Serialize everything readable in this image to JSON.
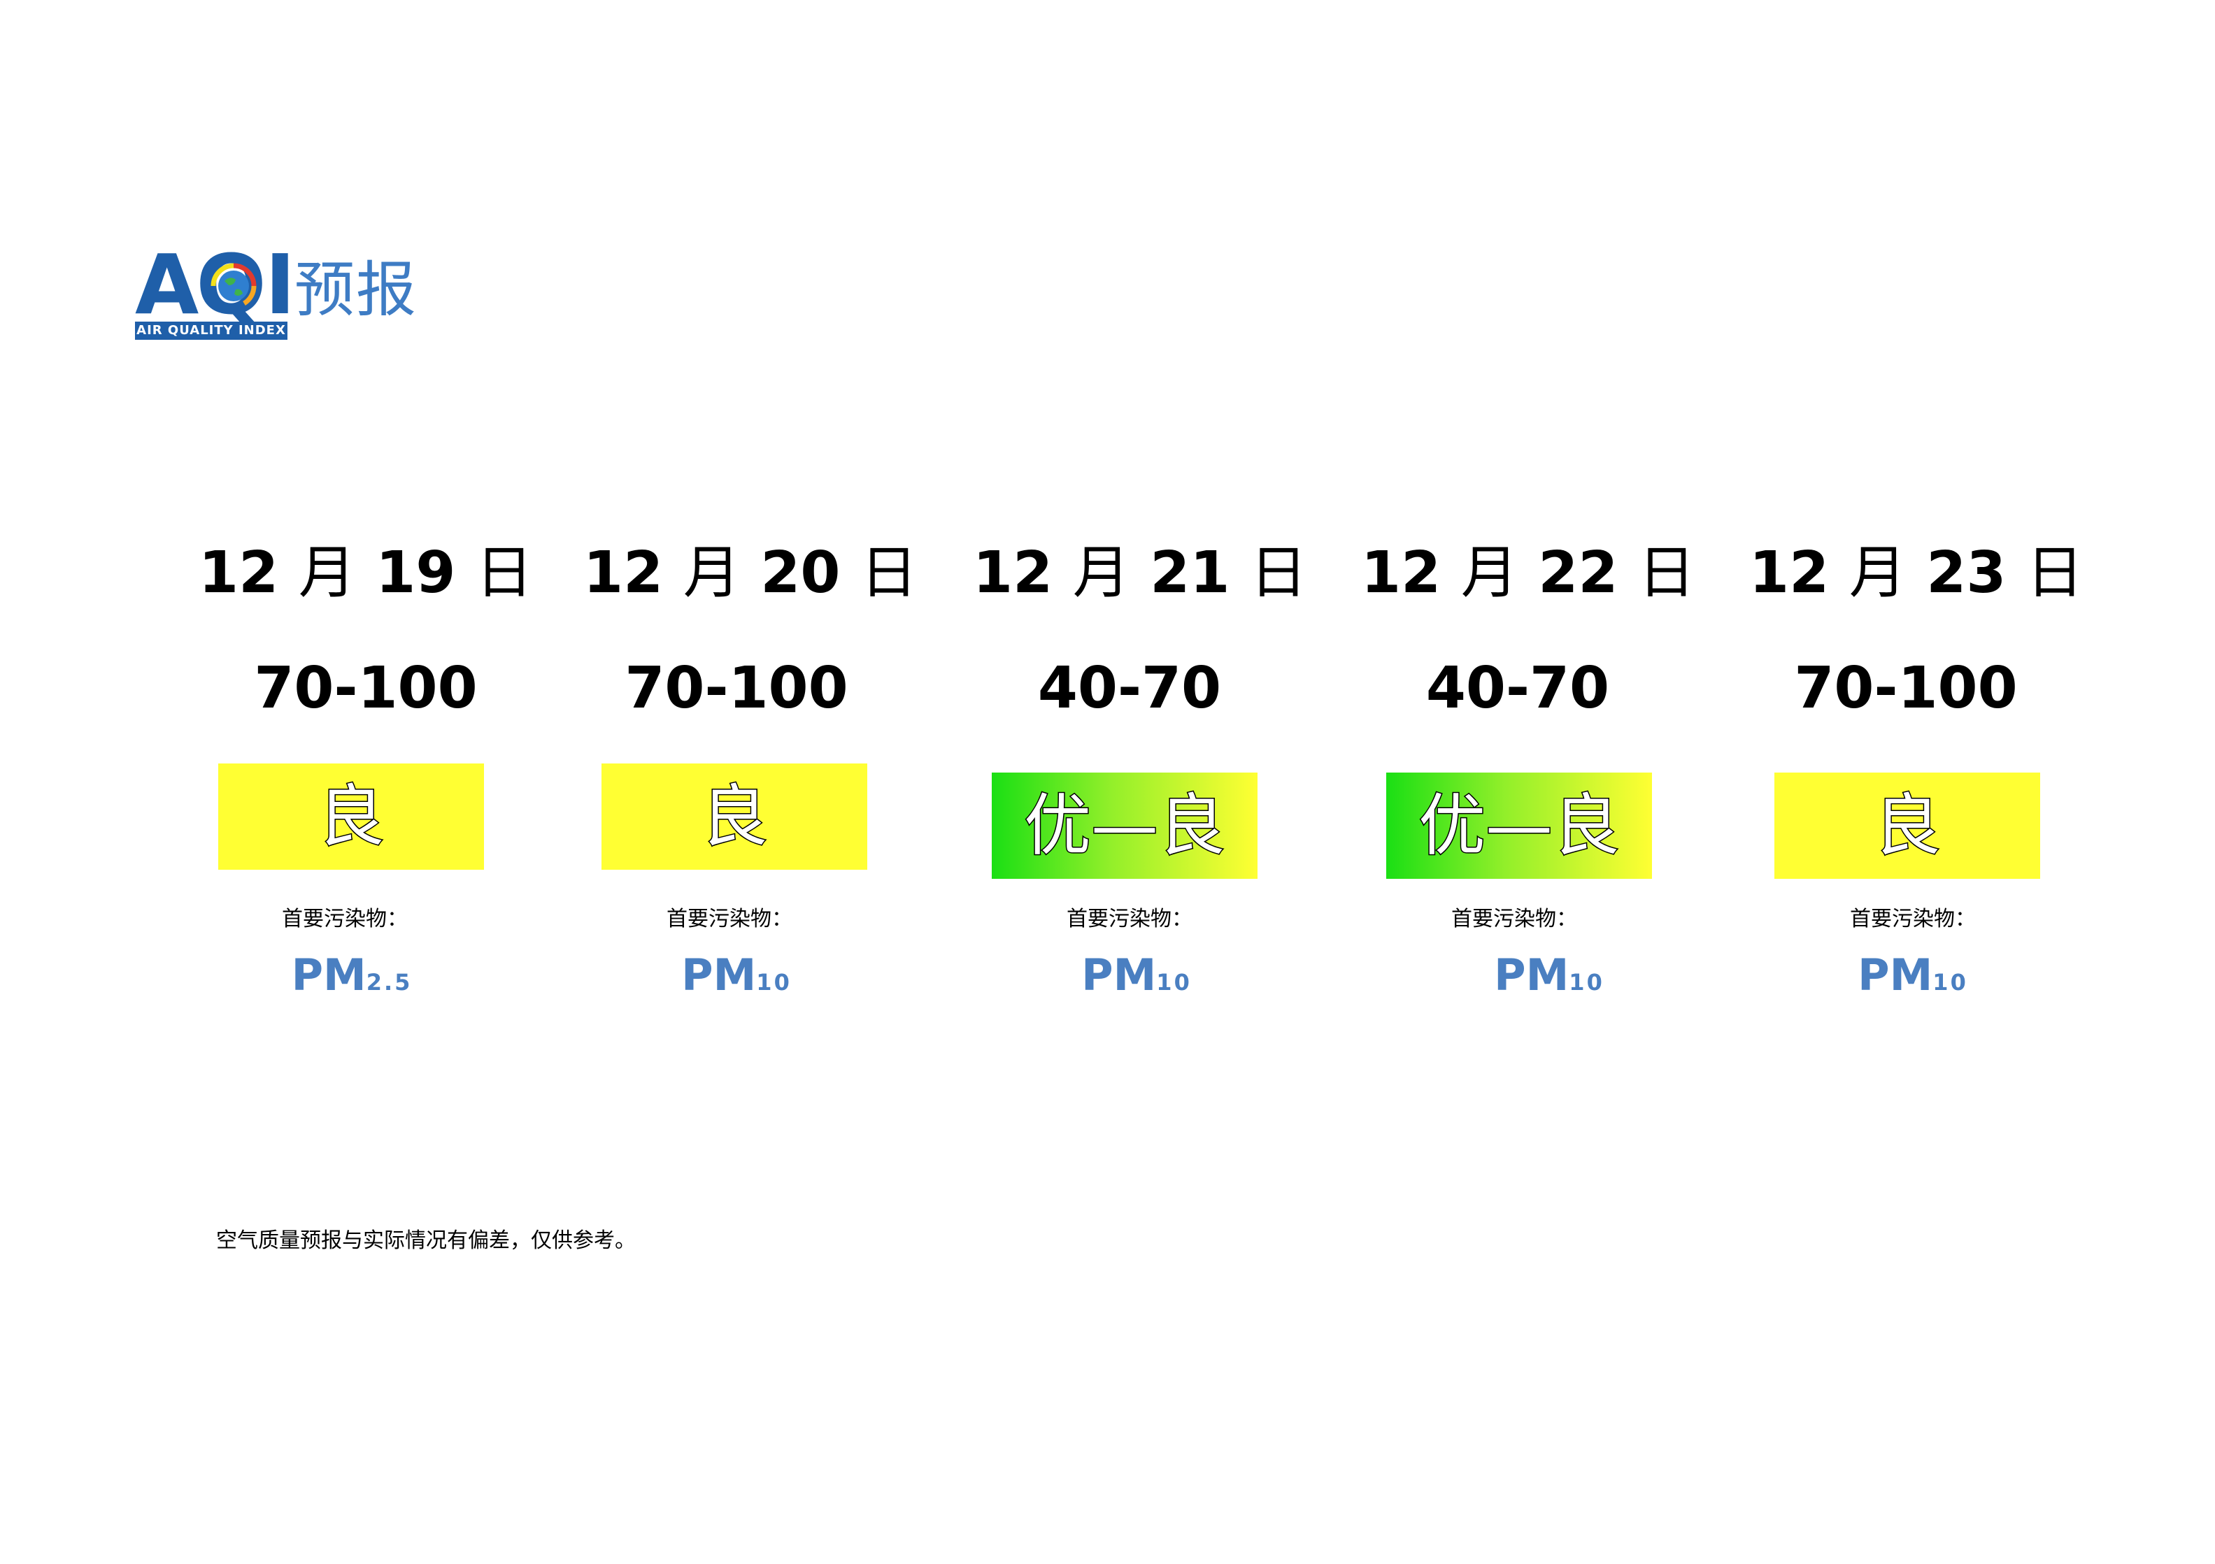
{
  "header": {
    "logo_letters": [
      "A",
      "Q",
      "I"
    ],
    "logo_subtitle": "AIR QUALITY INDEX",
    "title": "预报"
  },
  "forecast": [
    {
      "month": "12",
      "month_unit": "月",
      "day": "19",
      "day_unit": "日",
      "aqi_range": "70-100",
      "level": "良",
      "level_style": "good",
      "pollutant_label": "首要污染物：",
      "pollutant_main": "PM",
      "pollutant_sub": "2.5"
    },
    {
      "month": "12",
      "month_unit": "月",
      "day": "20",
      "day_unit": "日",
      "aqi_range": "70-100",
      "level": "良",
      "level_style": "good",
      "pollutant_label": "首要污染物：",
      "pollutant_main": "PM",
      "pollutant_sub": "10"
    },
    {
      "month": "12",
      "month_unit": "月",
      "day": "21",
      "day_unit": "日",
      "aqi_range": "40-70",
      "level": "优—良",
      "level_style": "grad",
      "pollutant_label": "首要污染物：",
      "pollutant_main": "PM",
      "pollutant_sub": "10"
    },
    {
      "month": "12",
      "month_unit": "月",
      "day": "22",
      "day_unit": "日",
      "aqi_range": "40-70",
      "level": "优—良",
      "level_style": "grad",
      "pollutant_label": "首要污染物：",
      "pollutant_main": "PM",
      "pollutant_sub": "10"
    },
    {
      "month": "12",
      "month_unit": "月",
      "day": "23",
      "day_unit": "日",
      "aqi_range": "70-100",
      "level": "良",
      "level_style": "good",
      "pollutant_label": "首要污染物：",
      "pollutant_main": "PM",
      "pollutant_sub": "10"
    }
  ],
  "footer": {
    "note": "空气质量预报与实际情况有偏差，仅供参考。"
  },
  "colors": {
    "brand_blue": "#1f5fa9",
    "pollutant_blue": "#4a7fc1",
    "level_good": "#ffff33",
    "level_excellent": "#1adf14"
  }
}
